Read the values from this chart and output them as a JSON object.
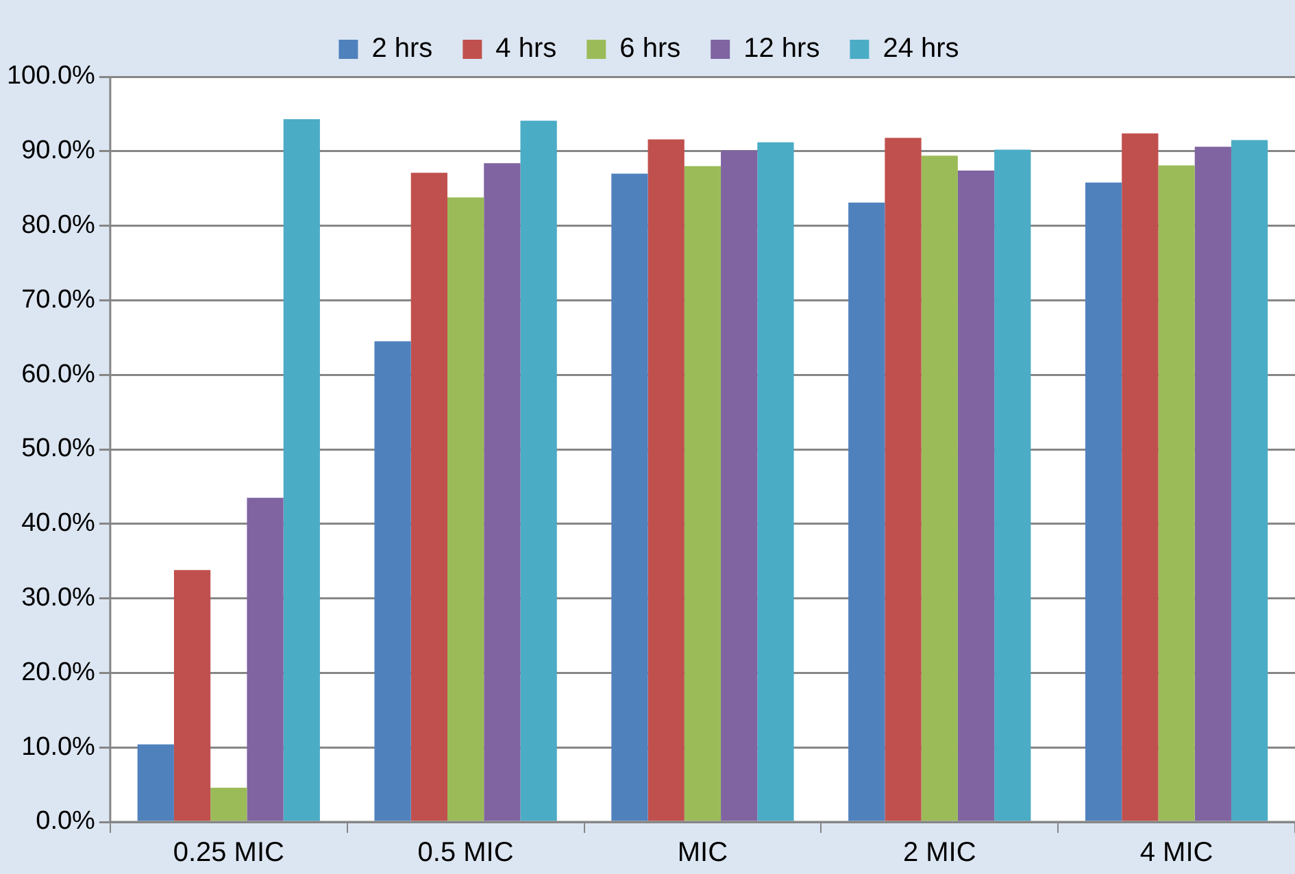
{
  "chart_data": {
    "type": "bar",
    "categories": [
      "0.25 MIC",
      "0.5 MIC",
      "MIC",
      "2 MIC",
      "4 MIC"
    ],
    "series": [
      {
        "name": "2 hrs",
        "color": "#4f81bd",
        "values": [
          10.4,
          64.5,
          87.0,
          83.1,
          85.8
        ]
      },
      {
        "name": "4 hrs",
        "color": "#c0504d",
        "values": [
          33.8,
          87.1,
          91.6,
          91.8,
          92.4
        ]
      },
      {
        "name": "6 hrs",
        "color": "#9bbb59",
        "values": [
          4.6,
          83.8,
          88.0,
          89.4,
          88.1
        ]
      },
      {
        "name": "12 hrs",
        "color": "#8064a2",
        "values": [
          43.5,
          88.4,
          90.1,
          87.4,
          90.6
        ]
      },
      {
        "name": "24 hrs",
        "color": "#4bacc6",
        "values": [
          94.3,
          94.1,
          91.2,
          90.2,
          91.5
        ]
      }
    ],
    "ylim": [
      0,
      100
    ],
    "yticks": [
      {
        "value": 0,
        "label": "0.0%"
      },
      {
        "value": 10,
        "label": "10.0%"
      },
      {
        "value": 20,
        "label": "20.0%"
      },
      {
        "value": 30,
        "label": "30.0%"
      },
      {
        "value": 40,
        "label": "40.0%"
      },
      {
        "value": 50,
        "label": "50.0%"
      },
      {
        "value": 60,
        "label": "60.0%"
      },
      {
        "value": 70,
        "label": "70.0%"
      },
      {
        "value": 80,
        "label": "80.0%"
      },
      {
        "value": 90,
        "label": "90.0%"
      },
      {
        "value": 100,
        "label": "100.0%"
      }
    ],
    "grid": "y",
    "legend": "top"
  }
}
